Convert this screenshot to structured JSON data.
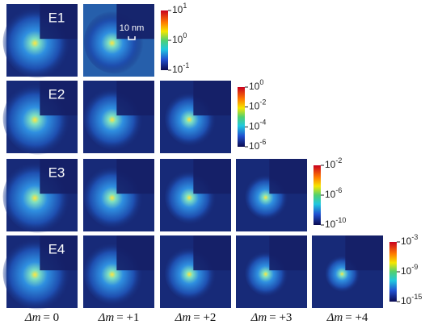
{
  "scale_bar": "10 nm",
  "rows": [
    {
      "label": "E1",
      "colorbar": [
        {
          "base": "10",
          "exp": "1"
        },
        {
          "base": "10",
          "exp": "0"
        },
        {
          "base": "10",
          "exp": "-1"
        }
      ]
    },
    {
      "label": "E2",
      "colorbar": [
        {
          "base": "10",
          "exp": "0"
        },
        {
          "base": "10",
          "exp": "-2"
        },
        {
          "base": "10",
          "exp": "-4"
        },
        {
          "base": "10",
          "exp": "-6"
        }
      ]
    },
    {
      "label": "E3",
      "colorbar": [
        {
          "base": "10",
          "exp": "-2"
        },
        {
          "base": "10",
          "exp": "-6"
        },
        {
          "base": "10",
          "exp": "-10"
        }
      ]
    },
    {
      "label": "E4",
      "colorbar": [
        {
          "base": "10",
          "exp": "-3"
        },
        {
          "base": "10",
          "exp": "-9"
        },
        {
          "base": "10",
          "exp": "-15"
        }
      ]
    }
  ],
  "columns": [
    {
      "symbol": "Δm",
      "value": "= 0"
    },
    {
      "symbol": "Δm",
      "value": "= +1"
    },
    {
      "symbol": "Δm",
      "value": "= +2"
    },
    {
      "symbol": "Δm",
      "value": "= +3"
    },
    {
      "symbol": "Δm",
      "value": "= +4"
    }
  ]
}
